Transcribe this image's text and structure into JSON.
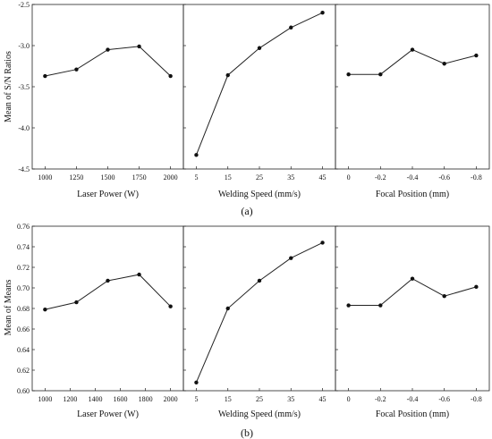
{
  "chart_data": [
    {
      "type": "line",
      "caption": "(a)",
      "ylabel": "Mean of S/N Ratios",
      "ylim": [
        -4.5,
        -2.5
      ],
      "yticks": [
        -4.5,
        -4.0,
        -3.5,
        -3.0,
        -2.5
      ],
      "ytick_labels": [
        "-4.5",
        "-4.0",
        "-3.5",
        "-3.0",
        "-2.5"
      ],
      "grid": false,
      "panels": [
        {
          "xlabel": "Laser Power (W)",
          "categories": [
            "1000",
            "1250",
            "1500",
            "1750",
            "2000"
          ],
          "values": [
            -3.37,
            -3.29,
            -3.05,
            -3.01,
            -3.37
          ]
        },
        {
          "xlabel": "Welding Speed (mm/s)",
          "categories": [
            "5",
            "15",
            "25",
            "35",
            "45"
          ],
          "values": [
            -4.33,
            -3.36,
            -3.03,
            -2.78,
            -2.6
          ]
        },
        {
          "xlabel": "Focal Position (mm)",
          "categories": [
            "0",
            "-0.2",
            "-0.4",
            "-0.6",
            "-0.8"
          ],
          "values": [
            -3.35,
            -3.35,
            -3.05,
            -3.22,
            -3.12
          ]
        }
      ]
    },
    {
      "type": "line",
      "caption": "(b)",
      "ylabel": "Mean of Means",
      "ylim": [
        0.6,
        0.76
      ],
      "yticks": [
        0.6,
        0.62,
        0.64,
        0.66,
        0.68,
        0.7,
        0.72,
        0.74,
        0.76
      ],
      "ytick_labels": [
        "0.60",
        "0.62",
        "0.64",
        "0.66",
        "0.68",
        "0.70",
        "0.72",
        "0.74",
        "0.76"
      ],
      "grid": false,
      "panels": [
        {
          "xlabel": "Laser Power (W)",
          "categories": [
            "1000",
            "1200",
            "1400",
            "1600",
            "1800",
            "2000"
          ],
          "points": [
            [
              1000,
              0.679
            ],
            [
              1250,
              0.686
            ],
            [
              1500,
              0.707
            ],
            [
              1750,
              0.713
            ],
            [
              2000,
              0.682
            ]
          ],
          "xrange": [
            1000,
            2000
          ]
        },
        {
          "xlabel": "Welding Speed (mm/s)",
          "categories": [
            "5",
            "15",
            "25",
            "35",
            "45"
          ],
          "values": [
            0.608,
            0.68,
            0.707,
            0.729,
            0.744
          ]
        },
        {
          "xlabel": "Focal Position (mm)",
          "categories": [
            "0",
            "-0.2",
            "-0.4",
            "-0.6",
            "-0.8"
          ],
          "values": [
            0.683,
            0.683,
            0.709,
            0.692,
            0.701
          ]
        }
      ]
    }
  ],
  "colors": {
    "line": "#222222",
    "marker": "#111111",
    "axis": "#222222"
  }
}
